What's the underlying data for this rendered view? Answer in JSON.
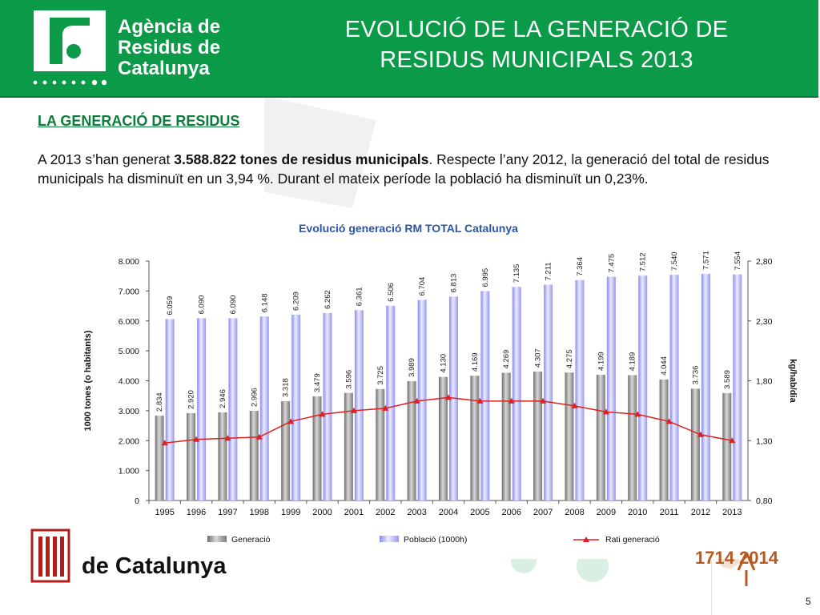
{
  "header": {
    "org_line1": "Agència de",
    "org_line2": "Residus de",
    "org_line3": "Catalunya",
    "title_line1": "EVOLUCIÓ DE LA GENERACIÓ DE",
    "title_line2": "RESIDUS MUNICIPALS 2013"
  },
  "section": {
    "title": "LA GENERACIÓ DE RESIDUS",
    "intro_before": "A 2013 s’han generat ",
    "intro_bold": "3.588.822 tones de residus municipals",
    "intro_after": ". Respecte l’any 2012, la generació del total de residus municipals ha disminuït en un 3,94 %. Durant el mateix període la població ha disminuït un 0,23%."
  },
  "footer": {
    "gencat_text": "de Catalunya",
    "anniversary_text": "1714 2014",
    "page_number": "5"
  },
  "colors": {
    "header_green": "#0a9a48",
    "generacio": "#9a9a9a",
    "poblacio": "#b3b3f5",
    "rati": "#e02020",
    "chart_title": "#2a55a8"
  },
  "chart_data": {
    "type": "bar",
    "title": "Evolució generació RM TOTAL Catalunya",
    "ylabel": "1000 tones (o habitants)",
    "y2label": "kg/hab/dia",
    "categories": [
      "1995",
      "1996",
      "1997",
      "1998",
      "1999",
      "2000",
      "2001",
      "2002",
      "2003",
      "2004",
      "2005",
      "2006",
      "2007",
      "2008",
      "2009",
      "2010",
      "2011",
      "2012",
      "2013"
    ],
    "ylim": [
      0,
      8000
    ],
    "y_ticks": [
      "0",
      "1.000",
      "2.000",
      "3.000",
      "4.000",
      "5.000",
      "6.000",
      "7.000",
      "8.000"
    ],
    "y2lim": [
      0.8,
      2.8
    ],
    "y2_ticks": [
      "0,80",
      "1,30",
      "1,80",
      "2,30",
      "2,80"
    ],
    "series": [
      {
        "name": "Generació",
        "type": "bar",
        "values": [
          2834,
          2920,
          2946,
          2996,
          3318,
          3479,
          3596,
          3725,
          3989,
          4130,
          4169,
          4269,
          4307,
          4275,
          4199,
          4189,
          4044,
          3736,
          3589
        ],
        "labels": [
          "2.834",
          "2.920",
          "2.946",
          "2.996",
          "3.318",
          "3.479",
          "3.596",
          "3.725",
          "3.989",
          "4.130",
          "4.169",
          "4.269",
          "4.307",
          "4.275",
          "4.199",
          "4.189",
          "4.044",
          "3.736",
          "3.589"
        ]
      },
      {
        "name": "Població (1000h)",
        "type": "bar",
        "values": [
          6059,
          6090,
          6090,
          6148,
          6209,
          6262,
          6361,
          6506,
          6704,
          6813,
          6995,
          7135,
          7211,
          7364,
          7475,
          7512,
          7540,
          7571,
          7554
        ],
        "labels": [
          "6.059",
          "6.090",
          "6.090",
          "6.148",
          "6.209",
          "6.262",
          "6.361",
          "6.506",
          "6.704",
          "6.813",
          "6.995",
          "7.135",
          "7.211",
          "7.364",
          "7.475",
          "7.512",
          "7.540",
          "7.571",
          "7.554"
        ]
      },
      {
        "name": "Rati generació",
        "type": "line",
        "axis": "right",
        "values": [
          1.28,
          1.31,
          1.32,
          1.33,
          1.46,
          1.52,
          1.55,
          1.57,
          1.63,
          1.66,
          1.63,
          1.63,
          1.63,
          1.59,
          1.54,
          1.52,
          1.46,
          1.35,
          1.3
        ]
      }
    ],
    "legend_position": "bottom",
    "grid": false
  }
}
